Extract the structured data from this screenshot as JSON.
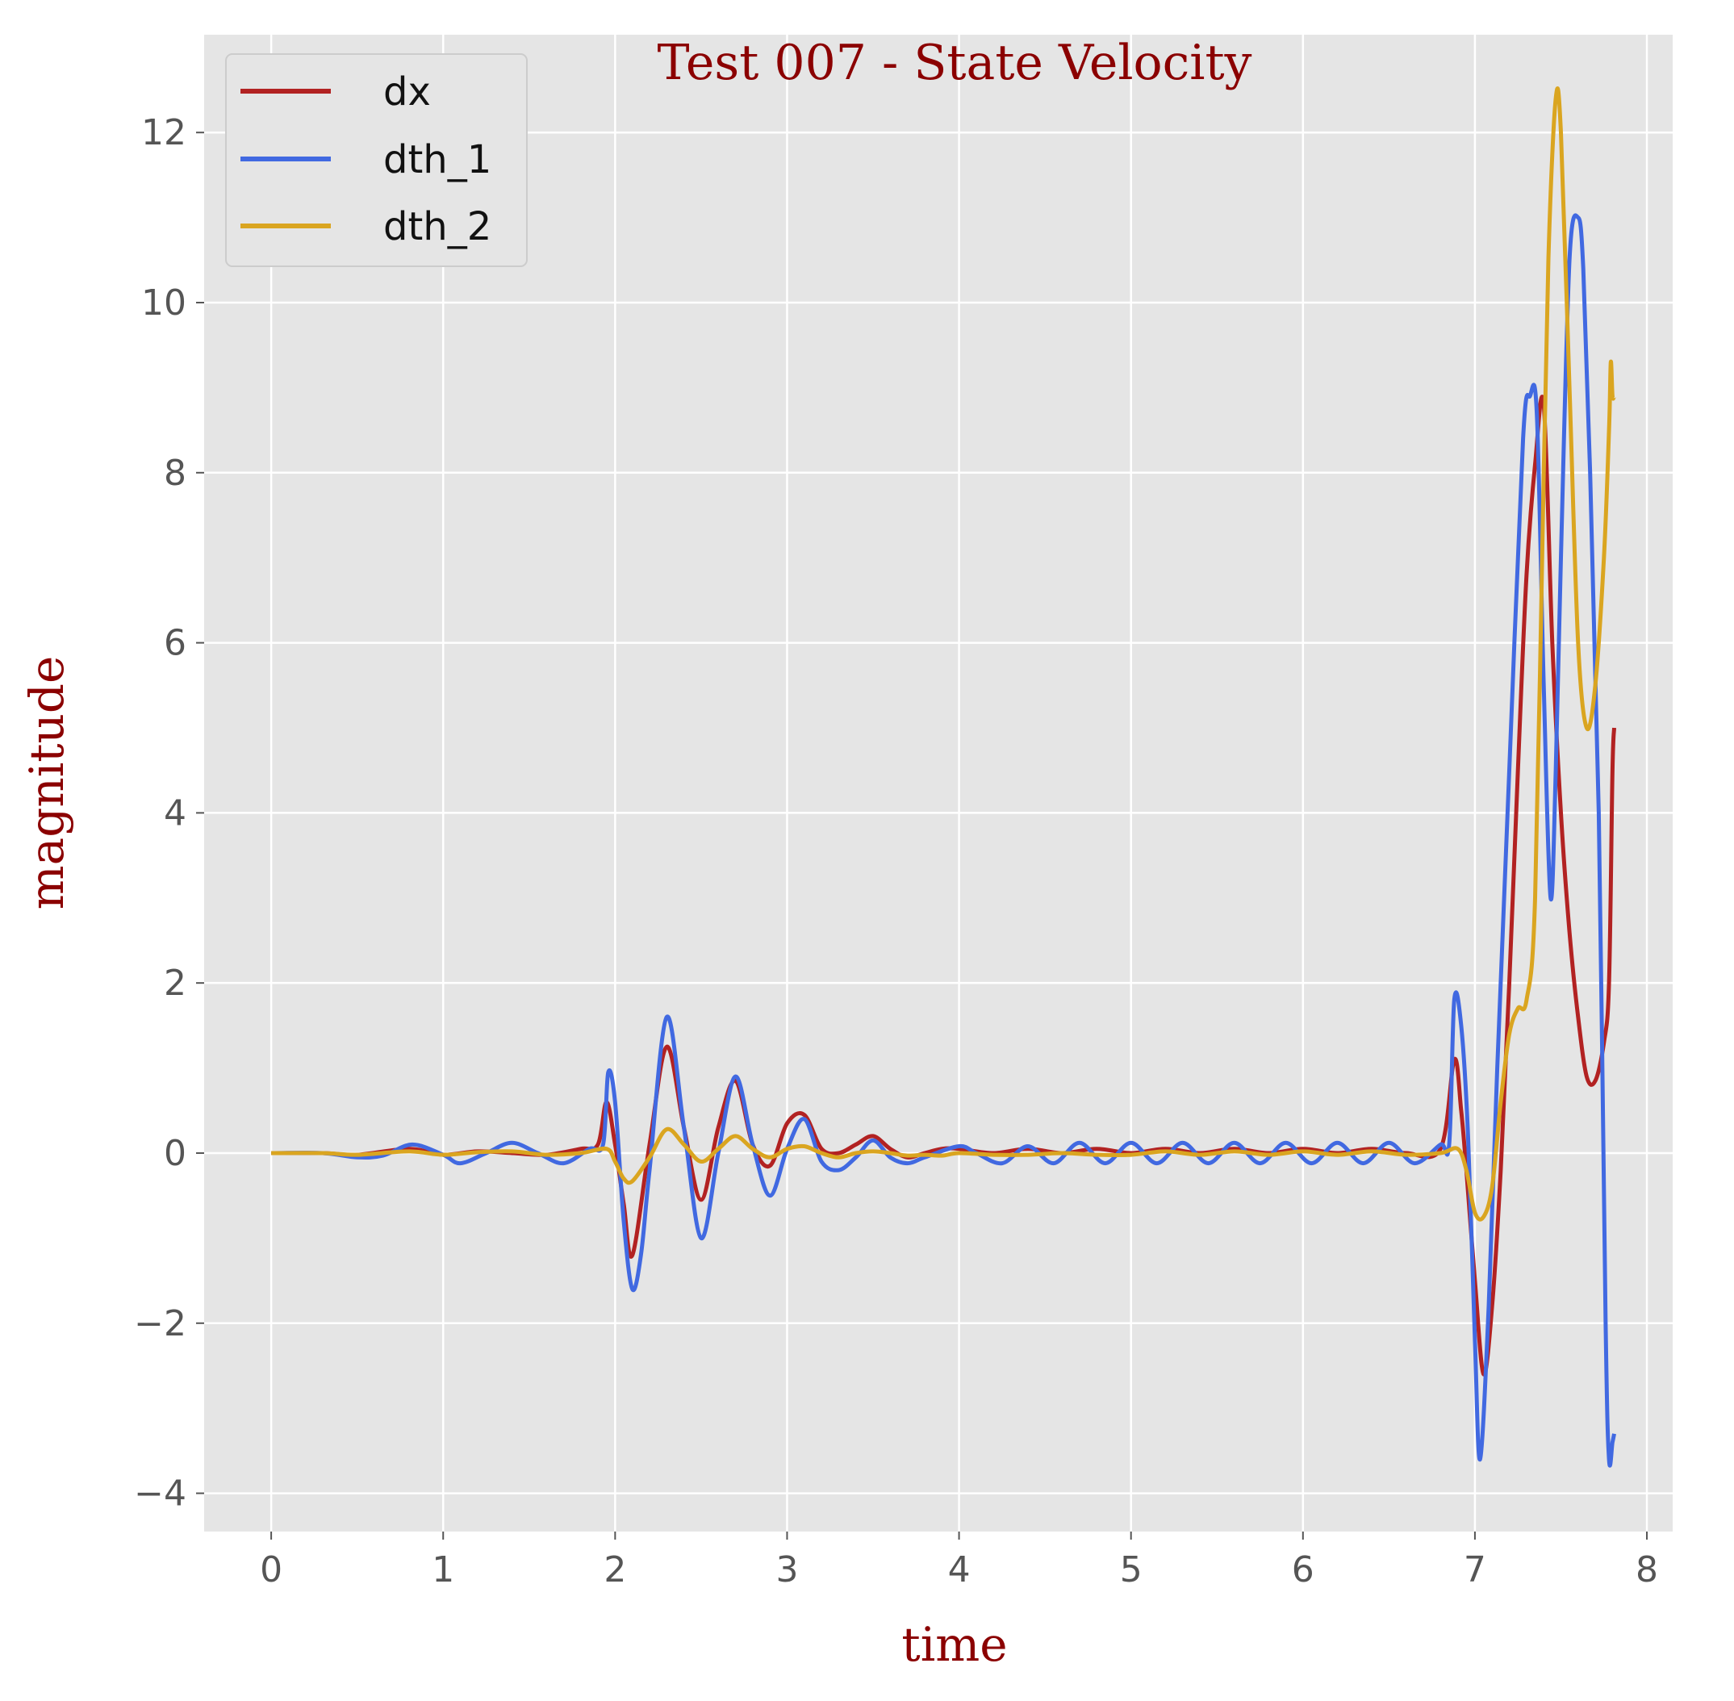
{
  "chart_data": {
    "type": "line",
    "title": "Test 007 - State Velocity",
    "xlabel": "time",
    "ylabel": "magnitude",
    "xlim": [
      -0.39,
      8.15
    ],
    "ylim": [
      -4.45,
      13.15
    ],
    "xticks": [
      0,
      1,
      2,
      3,
      4,
      5,
      6,
      7,
      8
    ],
    "xtick_labels": [
      "0",
      "1",
      "2",
      "3",
      "4",
      "5",
      "6",
      "7",
      "8"
    ],
    "yticks": [
      -4,
      -2,
      0,
      2,
      4,
      6,
      8,
      10,
      12
    ],
    "ytick_labels": [
      "−4",
      "−2",
      "0",
      "2",
      "4",
      "6",
      "8",
      "10",
      "12"
    ],
    "grid": true,
    "legend_position": "top-left",
    "background": "#e5e5e5",
    "series": [
      {
        "name": "dx",
        "color": "#b22222",
        "x": [
          0,
          0.3,
          0.5,
          0.8,
          1.0,
          1.2,
          1.4,
          1.6,
          1.8,
          1.9,
          1.95,
          2.0,
          2.05,
          2.1,
          2.2,
          2.3,
          2.4,
          2.5,
          2.6,
          2.7,
          2.8,
          2.9,
          3.0,
          3.1,
          3.2,
          3.3,
          3.4,
          3.5,
          3.6,
          3.7,
          3.8,
          3.9,
          4.0,
          4.2,
          4.4,
          4.6,
          4.8,
          5.0,
          5.2,
          5.4,
          5.6,
          5.8,
          6.0,
          6.2,
          6.4,
          6.6,
          6.8,
          6.88,
          6.92,
          6.95,
          7.0,
          7.05,
          7.1,
          7.15,
          7.2,
          7.25,
          7.3,
          7.35,
          7.4,
          7.45,
          7.5,
          7.55,
          7.6,
          7.65,
          7.7,
          7.75,
          7.78,
          7.8,
          7.81
        ],
        "y": [
          0,
          0,
          -0.02,
          0.05,
          -0.02,
          0.02,
          0.0,
          -0.02,
          0.05,
          0.1,
          0.6,
          0.1,
          -0.6,
          -1.2,
          0.1,
          1.25,
          0.3,
          -0.55,
          0.3,
          0.85,
          0.1,
          -0.15,
          0.35,
          0.45,
          0.05,
          0.0,
          0.1,
          0.2,
          0.05,
          -0.05,
          0.0,
          0.05,
          0.05,
          0.0,
          0.05,
          0.0,
          0.05,
          0.0,
          0.05,
          0.0,
          0.05,
          0.0,
          0.05,
          0.0,
          0.05,
          0.0,
          0.05,
          1.1,
          0.5,
          -0.2,
          -1.5,
          -2.6,
          -1.8,
          -0.2,
          2.0,
          4.5,
          6.8,
          8.1,
          8.8,
          6.0,
          4.0,
          2.6,
          1.6,
          0.9,
          0.85,
          1.3,
          2.0,
          4.5,
          5.0
        ]
      },
      {
        "name": "dth_1",
        "color": "#4169e1",
        "x": [
          0,
          0.3,
          0.5,
          0.65,
          0.82,
          1.0,
          1.1,
          1.25,
          1.4,
          1.55,
          1.7,
          1.85,
          1.93,
          1.96,
          2.0,
          2.05,
          2.1,
          2.15,
          2.2,
          2.3,
          2.4,
          2.5,
          2.6,
          2.7,
          2.8,
          2.9,
          3.0,
          3.1,
          3.2,
          3.3,
          3.4,
          3.5,
          3.6,
          3.7,
          3.8,
          4.0,
          4.1,
          4.25,
          4.4,
          4.55,
          4.7,
          4.85,
          5.0,
          5.15,
          5.3,
          5.45,
          5.6,
          5.75,
          5.9,
          6.05,
          6.2,
          6.35,
          6.5,
          6.65,
          6.8,
          6.85,
          6.88,
          6.92,
          6.96,
          7.0,
          7.03,
          7.08,
          7.13,
          7.2,
          7.28,
          7.32,
          7.36,
          7.4,
          7.44,
          7.47,
          7.5,
          7.55,
          7.6,
          7.63,
          7.67,
          7.72,
          7.76,
          7.78,
          7.8,
          7.81
        ],
        "y": [
          0,
          0,
          -0.05,
          -0.03,
          0.1,
          -0.02,
          -0.12,
          0.0,
          0.12,
          0.0,
          -0.12,
          0.05,
          0.1,
          0.95,
          0.6,
          -0.8,
          -1.6,
          -1.2,
          -0.2,
          1.6,
          0.3,
          -1.0,
          0.0,
          0.9,
          0.1,
          -0.5,
          0.05,
          0.4,
          -0.1,
          -0.2,
          -0.05,
          0.15,
          -0.05,
          -0.12,
          -0.05,
          0.08,
          0.0,
          -0.12,
          0.08,
          -0.12,
          0.12,
          -0.12,
          0.12,
          -0.12,
          0.12,
          -0.12,
          0.12,
          -0.12,
          0.12,
          -0.12,
          0.12,
          -0.12,
          0.12,
          -0.12,
          0.1,
          0.1,
          1.8,
          1.5,
          0.2,
          -2.2,
          -3.6,
          -1.8,
          1.0,
          4.5,
          8.4,
          8.9,
          8.7,
          5.5,
          3.0,
          4.5,
          7.0,
          10.5,
          11.0,
          10.4,
          8.0,
          4.0,
          -2.0,
          -3.6,
          -3.4,
          -3.3
        ]
      },
      {
        "name": "dth_2",
        "color": "#daa520",
        "x": [
          0,
          0.3,
          0.5,
          0.8,
          1.0,
          1.2,
          1.4,
          1.6,
          1.8,
          1.95,
          2.0,
          2.05,
          2.1,
          2.2,
          2.3,
          2.4,
          2.5,
          2.6,
          2.7,
          2.8,
          2.9,
          3.0,
          3.1,
          3.2,
          3.3,
          3.4,
          3.5,
          3.6,
          3.7,
          3.8,
          3.9,
          4.0,
          4.2,
          4.4,
          4.6,
          4.8,
          5.0,
          5.2,
          5.4,
          5.6,
          5.8,
          6.0,
          6.2,
          6.4,
          6.6,
          6.8,
          6.9,
          6.95,
          7.0,
          7.05,
          7.1,
          7.15,
          7.2,
          7.25,
          7.3,
          7.35,
          7.4,
          7.43,
          7.47,
          7.5,
          7.55,
          7.6,
          7.65,
          7.7,
          7.75,
          7.78,
          7.79,
          7.8,
          7.81
        ],
        "y": [
          0,
          0,
          -0.02,
          0.02,
          -0.02,
          0.01,
          0.02,
          -0.02,
          0.0,
          0.05,
          -0.1,
          -0.3,
          -0.33,
          -0.05,
          0.28,
          0.1,
          -0.1,
          0.05,
          0.2,
          0.05,
          -0.05,
          0.05,
          0.08,
          0.0,
          -0.05,
          0.0,
          0.02,
          0.0,
          -0.03,
          -0.02,
          -0.03,
          0.0,
          -0.02,
          -0.02,
          0.0,
          -0.02,
          -0.02,
          0.02,
          -0.02,
          0.02,
          -0.02,
          0.02,
          -0.02,
          0.02,
          -0.02,
          0.0,
          0.05,
          -0.2,
          -0.7,
          -0.75,
          -0.4,
          0.6,
          1.4,
          1.7,
          1.8,
          3.0,
          8.0,
          10.7,
          12.4,
          12.0,
          9.0,
          6.0,
          5.0,
          5.5,
          7.0,
          8.5,
          9.3,
          8.9,
          8.9
        ]
      }
    ]
  }
}
